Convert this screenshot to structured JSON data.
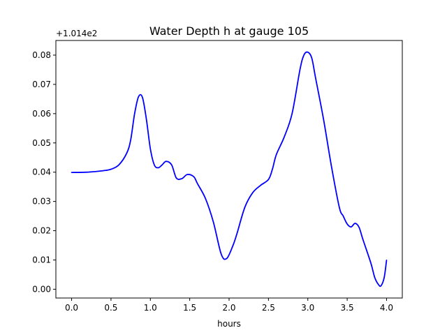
{
  "chart_data": {
    "type": "line",
    "title": "Water Depth h at gauge 105",
    "xlabel": "hours",
    "ylabel": "",
    "offset_label": "+1.014e2",
    "xlim": [
      -0.2,
      4.2
    ],
    "ylim": [
      -0.003,
      0.085
    ],
    "xticks": [
      0.0,
      0.5,
      1.0,
      1.5,
      2.0,
      2.5,
      3.0,
      3.5,
      4.0
    ],
    "xtick_labels": [
      "0.0",
      "0.5",
      "1.0",
      "1.5",
      "2.0",
      "2.5",
      "3.0",
      "3.5",
      "4.0"
    ],
    "yticks": [
      0.0,
      0.01,
      0.02,
      0.03,
      0.04,
      0.05,
      0.06,
      0.07,
      0.08
    ],
    "ytick_labels": [
      "0.00",
      "0.01",
      "0.02",
      "0.03",
      "0.04",
      "0.05",
      "0.06",
      "0.07",
      "0.08"
    ],
    "grid": false,
    "series": [
      {
        "color": "#0000ff",
        "x": [
          0.0,
          0.2,
          0.4,
          0.5,
          0.6,
          0.7,
          0.75,
          0.8,
          0.85,
          0.9,
          0.95,
          1.0,
          1.05,
          1.1,
          1.15,
          1.2,
          1.27,
          1.33,
          1.4,
          1.47,
          1.55,
          1.6,
          1.7,
          1.8,
          1.9,
          1.97,
          2.05,
          2.1,
          2.2,
          2.3,
          2.4,
          2.5,
          2.55,
          2.6,
          2.7,
          2.8,
          2.9,
          2.95,
          3.0,
          3.05,
          3.1,
          3.2,
          3.3,
          3.4,
          3.45,
          3.5,
          3.55,
          3.6,
          3.65,
          3.7,
          3.8,
          3.85,
          3.9,
          3.93,
          3.97,
          4.0
        ],
        "y": [
          0.0399,
          0.04,
          0.0405,
          0.041,
          0.0425,
          0.0465,
          0.051,
          0.06,
          0.0658,
          0.0655,
          0.058,
          0.048,
          0.0425,
          0.0415,
          0.0425,
          0.0437,
          0.0425,
          0.038,
          0.0378,
          0.0392,
          0.0385,
          0.036,
          0.031,
          0.023,
          0.012,
          0.0105,
          0.015,
          0.019,
          0.028,
          0.033,
          0.0355,
          0.0375,
          0.041,
          0.046,
          0.052,
          0.06,
          0.075,
          0.08,
          0.081,
          0.079,
          0.072,
          0.058,
          0.042,
          0.028,
          0.025,
          0.0223,
          0.0213,
          0.0225,
          0.0212,
          0.017,
          0.009,
          0.004,
          0.0015,
          0.0012,
          0.004,
          0.0099
        ]
      }
    ]
  }
}
